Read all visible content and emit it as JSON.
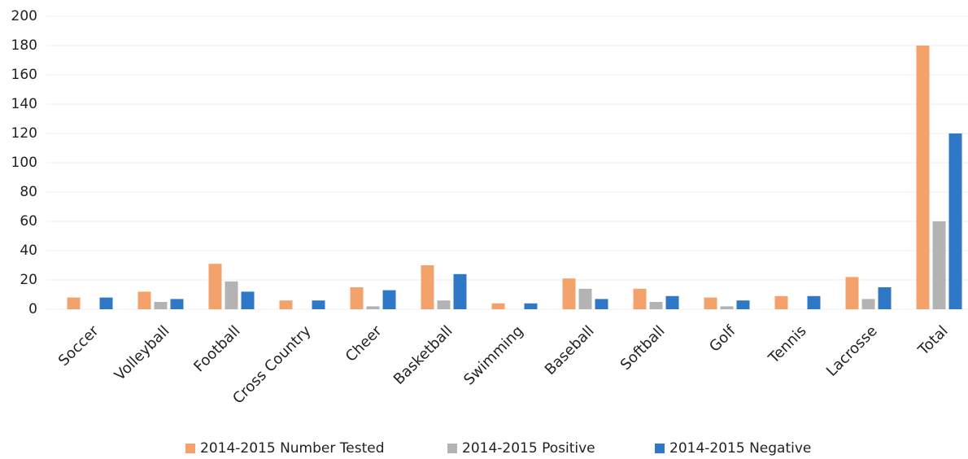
{
  "chart_data": {
    "type": "bar",
    "categories": [
      "Soccer",
      "Volleyball",
      "Football",
      "Cross Country",
      "Cheer",
      "Basketball",
      "Swimming",
      "Baseball",
      "Softball",
      "Golf",
      "Tennis",
      "Lacrosse",
      "Total"
    ],
    "series": [
      {
        "name": "2014-2015 Number Tested",
        "color": "#f4a26b",
        "values": [
          8,
          12,
          31,
          6,
          15,
          30,
          4,
          21,
          14,
          8,
          9,
          22,
          180
        ]
      },
      {
        "name": "2014-2015 Positive",
        "color": "#b3b3b3",
        "values": [
          0,
          5,
          19,
          0,
          2,
          6,
          0,
          14,
          5,
          2,
          0,
          7,
          60
        ]
      },
      {
        "name": "2014-2015 Negative",
        "color": "#2f78c8",
        "values": [
          8,
          7,
          12,
          6,
          13,
          24,
          4,
          7,
          9,
          6,
          9,
          15,
          120
        ]
      }
    ],
    "ylim": [
      0,
      200
    ],
    "yticks": [
      0,
      20,
      40,
      60,
      80,
      100,
      120,
      140,
      160,
      180,
      200
    ],
    "grid": true,
    "legend": "bottom"
  }
}
